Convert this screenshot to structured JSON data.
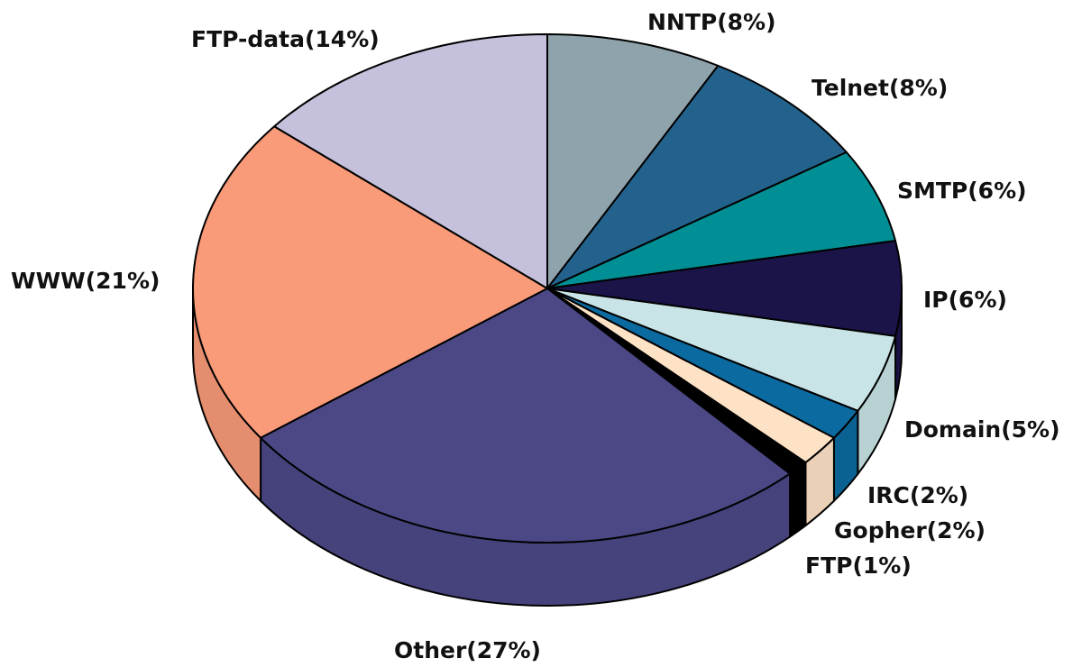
{
  "chart_data": {
    "type": "pie",
    "title": "",
    "slices": [
      {
        "label": "NNTP(8%)",
        "name": "NNTP",
        "value": 8,
        "color": "#8fa3ad"
      },
      {
        "label": "Telnet(8%)",
        "name": "Telnet",
        "value": 8,
        "color": "#23628c"
      },
      {
        "label": "SMTP(6%)",
        "name": "SMTP",
        "value": 6,
        "color": "#008f94"
      },
      {
        "label": "IP(6%)",
        "name": "IP",
        "value": 6,
        "color": "#1b1449"
      },
      {
        "label": "Domain(5%)",
        "name": "Domain",
        "value": 5,
        "color": "#c8e4e6"
      },
      {
        "label": "IRC(2%)",
        "name": "IRC",
        "value": 2,
        "color": "#0b6aa0"
      },
      {
        "label": "Gopher(2%)",
        "name": "Gopher",
        "value": 2,
        "color": "#fde2c6"
      },
      {
        "label": "FTP(1%)",
        "name": "FTP",
        "value": 1,
        "color": "#000000"
      },
      {
        "label": "Other(27%)",
        "name": "Other",
        "value": 27,
        "color": "#4c4886"
      },
      {
        "label": "WWW(21%)",
        "name": "WWW",
        "value": 21,
        "color": "#f99a79"
      },
      {
        "label": "FTP-data(14%)",
        "name": "FTP-data",
        "value": 14,
        "color": "#c5c1dd"
      }
    ],
    "style": "3d-tilted",
    "legend": "none"
  }
}
